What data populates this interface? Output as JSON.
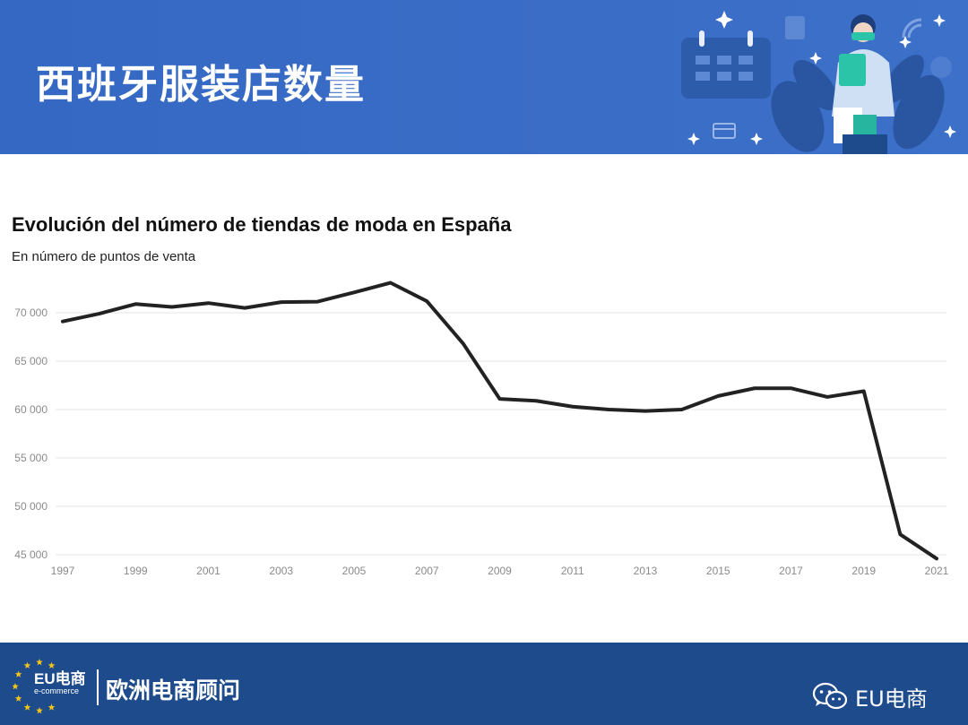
{
  "header": {
    "title": "西班牙服装店数量",
    "illustration_icon": "shopping-calendar-illustration"
  },
  "chart_data": {
    "type": "line",
    "title": "Evolución del número de tiendas de moda en España",
    "subtitle": "En número de puntos de venta",
    "xlabel": "",
    "ylabel": "",
    "x": [
      1997,
      1998,
      1999,
      2000,
      2001,
      2002,
      2003,
      2004,
      2005,
      2006,
      2007,
      2008,
      2009,
      2010,
      2011,
      2012,
      2013,
      2014,
      2015,
      2016,
      2017,
      2018,
      2019,
      2020,
      2021
    ],
    "series": [
      {
        "values": [
          69100,
          69900,
          70900,
          70600,
          71000,
          70500,
          71100,
          71150,
          72100,
          73100,
          71200,
          66800,
          61100,
          60900,
          60300,
          60000,
          59850,
          60000,
          61400,
          62200,
          62200,
          61300,
          61900,
          47100,
          44600
        ],
        "color": "#222222"
      }
    ],
    "x_ticks": [
      "1997",
      "1999",
      "2001",
      "2003",
      "2005",
      "2007",
      "2009",
      "2011",
      "2013",
      "2015",
      "2017",
      "2019",
      "2021"
    ],
    "y_ticks": [
      {
        "value": 45000,
        "label": "45 000"
      },
      {
        "value": 50000,
        "label": "50 000"
      },
      {
        "value": 55000,
        "label": "55 000"
      },
      {
        "value": 60000,
        "label": "60 000"
      },
      {
        "value": 65000,
        "label": "65 000"
      },
      {
        "value": 70000,
        "label": "70 000"
      }
    ],
    "xlim": [
      1997,
      2021
    ],
    "ylim": [
      45000,
      70000
    ],
    "grid": true,
    "legend": "none"
  },
  "footer": {
    "logo_text": "EU电商",
    "logo_sub": "e-commerce",
    "brand": "欧洲电商顾问",
    "wechat_icon": "wechat-icon",
    "account": "EU电商",
    "colors": {
      "band": "#1e4b8c",
      "header": "#3a6dc6",
      "star": "#f5c518"
    }
  }
}
